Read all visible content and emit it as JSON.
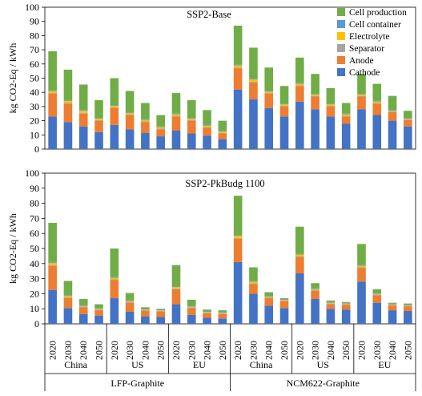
{
  "chart_data": {
    "type": "bar",
    "stacked": true,
    "ylabel": "kg CO2-Eq / kWh",
    "ylim": [
      0,
      100
    ],
    "yticks": [
      0,
      10,
      20,
      30,
      40,
      50,
      60,
      70,
      80,
      90,
      100
    ],
    "years": [
      "2020",
      "2030",
      "2040",
      "2050"
    ],
    "regions": [
      "China",
      "US",
      "EU",
      "China",
      "US",
      "EU"
    ],
    "chemistries": [
      "LFP-Graphite",
      "NCM622-Graphite"
    ],
    "legend": {
      "position": "top-right",
      "items": [
        {
          "name": "Cell production",
          "color": "#70ad47"
        },
        {
          "name": "Cell container",
          "color": "#5b9bd5"
        },
        {
          "name": "Electrolyte",
          "color": "#ffc000"
        },
        {
          "name": "Separator",
          "color": "#a5a5a5"
        },
        {
          "name": "Anode",
          "color": "#ed7d31"
        },
        {
          "name": "Cathode",
          "color": "#4472c4"
        }
      ]
    },
    "stack_order": [
      "Cathode",
      "Anode",
      "Separator",
      "Electrolyte",
      "Cell container",
      "Cell production"
    ],
    "panels": [
      {
        "title": "SSP2-Base",
        "bars": [
          [
            23,
            16,
            0.5,
            1.5,
            0.5,
            27.5
          ],
          [
            19,
            13,
            0.5,
            1.5,
            0.5,
            21.5
          ],
          [
            16,
            9,
            0.5,
            1.5,
            0.5,
            18
          ],
          [
            12,
            8,
            0.5,
            1,
            0.5,
            12.5
          ],
          [
            17,
            12,
            0.5,
            1,
            0.5,
            19
          ],
          [
            14,
            10,
            0.5,
            1,
            0.5,
            15
          ],
          [
            11.5,
            7.5,
            0.5,
            1,
            0.5,
            11.5
          ],
          [
            9,
            5,
            0.5,
            1,
            0.5,
            8
          ],
          [
            13,
            10,
            0.5,
            1,
            0.5,
            14.5
          ],
          [
            11,
            9,
            0.5,
            1,
            0.5,
            12.5
          ],
          [
            9.5,
            5.5,
            0.5,
            1,
            0.5,
            10.5
          ],
          [
            7,
            4,
            0.5,
            1,
            0.5,
            7
          ],
          [
            42,
            15,
            0.5,
            1.5,
            0.5,
            27.5
          ],
          [
            35,
            12,
            0.5,
            1.5,
            0.5,
            22
          ],
          [
            29,
            10,
            0.5,
            1,
            0.5,
            16.5
          ],
          [
            23,
            7,
            0.5,
            1,
            0.5,
            12.5
          ],
          [
            33.5,
            11,
            0.5,
            1,
            0.5,
            18
          ],
          [
            28,
            9,
            0.5,
            1,
            0.5,
            14
          ],
          [
            23,
            7,
            0.5,
            1,
            0.5,
            11
          ],
          [
            18,
            5,
            0.5,
            1,
            0.5,
            7.5
          ],
          [
            28,
            9,
            0.5,
            1,
            0.5,
            14
          ],
          [
            24,
            8,
            0.5,
            1,
            0.5,
            12
          ],
          [
            20,
            6,
            0.5,
            0.5,
            0.5,
            10
          ],
          [
            16,
            4.5,
            0.5,
            0.5,
            0.5,
            5
          ]
        ]
      },
      {
        "title": "SSP2-PkBudg 1100",
        "bars": [
          [
            22.5,
            16,
            0.5,
            1.5,
            0.5,
            26
          ],
          [
            10.5,
            6.5,
            0.5,
            1,
            0.5,
            9.5
          ],
          [
            6.5,
            4.5,
            0.5,
            0.5,
            0.5,
            4
          ],
          [
            5.5,
            3.5,
            0.5,
            0.5,
            0.5,
            2.5
          ],
          [
            17,
            12,
            0.5,
            1,
            0.5,
            19
          ],
          [
            8,
            6,
            0.5,
            0.5,
            0.5,
            5
          ],
          [
            5,
            3.5,
            0.5,
            0.5,
            0.5,
            1
          ],
          [
            4.5,
            3.5,
            0.5,
            0.5,
            0.5,
            0.5
          ],
          [
            13,
            10,
            0.5,
            1,
            0.5,
            14
          ],
          [
            6,
            4.5,
            0.5,
            0.5,
            0.5,
            4
          ],
          [
            4,
            3,
            0.5,
            0.5,
            0.5,
            1
          ],
          [
            3.5,
            3,
            0.5,
            0.5,
            0.5,
            1
          ],
          [
            41,
            15.5,
            0.5,
            1.5,
            0.5,
            26
          ],
          [
            20,
            6.5,
            0.5,
            1,
            0.5,
            9
          ],
          [
            12,
            5,
            0.5,
            0.5,
            0.5,
            2.5
          ],
          [
            10.5,
            4.5,
            0.5,
            0.5,
            0.5,
            0.5
          ],
          [
            33.5,
            11,
            0.5,
            1,
            0.5,
            18
          ],
          [
            16.5,
            5.5,
            0.5,
            0.5,
            0.5,
            3.5
          ],
          [
            10,
            3,
            0.5,
            0.5,
            0.5,
            1
          ],
          [
            9.5,
            3,
            0.5,
            0.5,
            0.5,
            0.5
          ],
          [
            28,
            9,
            0.5,
            1,
            0.5,
            14
          ],
          [
            14,
            5,
            0.5,
            0.5,
            0.5,
            2.5
          ],
          [
            9,
            3,
            0.5,
            0.5,
            0.5,
            0.5
          ],
          [
            8.5,
            3,
            0.5,
            0.5,
            0.5,
            0.5
          ]
        ]
      }
    ]
  }
}
